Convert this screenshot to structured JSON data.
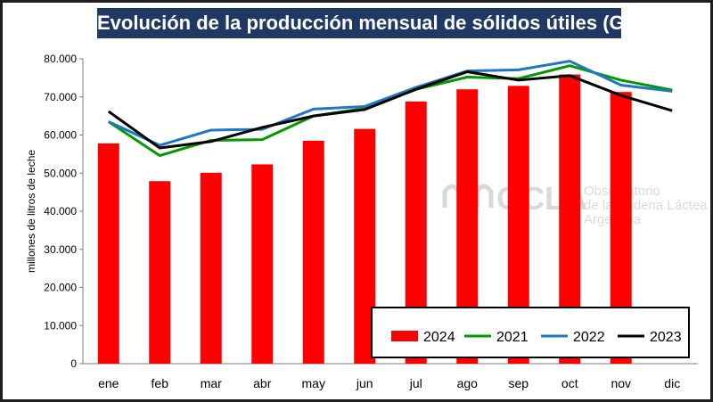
{
  "chart_data": {
    "type": "bar+line",
    "title": "Evolución de la producción mensual de sólidos útiles (GB+P)",
    "ylabel": "millones de litros de leche",
    "xlabel": "",
    "ylim": [
      0,
      80000
    ],
    "ytick_labels": [
      "0",
      "10.000",
      "20.000",
      "30.000",
      "40.000",
      "50.000",
      "60.000",
      "70.000",
      "80.000"
    ],
    "yticks": [
      0,
      10000,
      20000,
      30000,
      40000,
      50000,
      60000,
      70000,
      80000
    ],
    "categories": [
      "ene",
      "feb",
      "mar",
      "abr",
      "may",
      "jun",
      "jul",
      "ago",
      "sep",
      "oct",
      "nov",
      "dic"
    ],
    "series": [
      {
        "name": "2024",
        "kind": "bar",
        "color": "#ff0000",
        "values": [
          57800,
          47900,
          50100,
          52300,
          58500,
          61600,
          68800,
          72000,
          72900,
          75900,
          71300,
          null
        ]
      },
      {
        "name": "2021",
        "kind": "line",
        "color": "#009900",
        "values": [
          63500,
          54600,
          58600,
          58800,
          65000,
          67000,
          72000,
          75200,
          74800,
          78200,
          74400,
          71800
        ]
      },
      {
        "name": "2022",
        "kind": "line",
        "color": "#1f77c4",
        "values": [
          63500,
          57300,
          61300,
          61500,
          66800,
          67500,
          72500,
          76800,
          77100,
          79400,
          73100,
          71500
        ]
      },
      {
        "name": "2023",
        "kind": "line",
        "color": "#000000",
        "values": [
          66200,
          56600,
          58300,
          62000,
          65000,
          66700,
          72000,
          76600,
          74400,
          75600,
          70400,
          66400
        ]
      }
    ],
    "legend_position": "bottom-right",
    "grid": false
  },
  "watermark": {
    "logo_text": "OCLA",
    "lines": [
      "Observatorio",
      "de la Cadena Láctea",
      "Argentina"
    ]
  }
}
